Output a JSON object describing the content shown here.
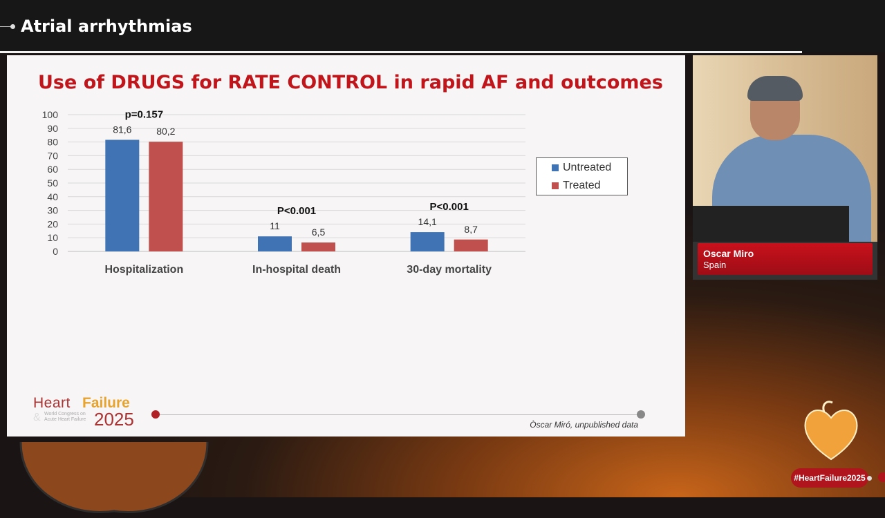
{
  "header": {
    "title": "Atrial arrhythmias"
  },
  "slide": {
    "title": "Use of DRUGS for RATE CONTROL in rapid AF and outcomes",
    "source": "Òscar Miró, unpublished data",
    "logo": {
      "word1": "Heart",
      "word2": "Failure",
      "amp": "&",
      "subtitle_line1": "World Congress on",
      "subtitle_line2": "Acute Heart Failure",
      "year": "2025"
    }
  },
  "chart_data": {
    "type": "bar",
    "categories": [
      "Hospitalization",
      "In-hospital death",
      "30-day mortality"
    ],
    "series": [
      {
        "name": "Untreated",
        "color": "#3f73b4",
        "values": [
          81.6,
          11,
          14.1
        ],
        "labels": [
          "81,6",
          "11",
          "14,1"
        ]
      },
      {
        "name": "Treated",
        "color": "#c0504d",
        "values": [
          80.2,
          6.5,
          8.7
        ],
        "labels": [
          "80,2",
          "6,5",
          "8,7"
        ]
      }
    ],
    "pvalues": [
      "p=0.157",
      "P<0.001",
      "P<0.001"
    ],
    "ylim": [
      0,
      100
    ],
    "yticks": [
      "0",
      "10",
      "20",
      "30",
      "40",
      "50",
      "60",
      "70",
      "80",
      "90",
      "100"
    ],
    "grid": true,
    "legend_position": "right"
  },
  "speaker": {
    "name": "Oscar Miro",
    "country": "Spain"
  },
  "hashtag": "#HeartFailure2025"
}
